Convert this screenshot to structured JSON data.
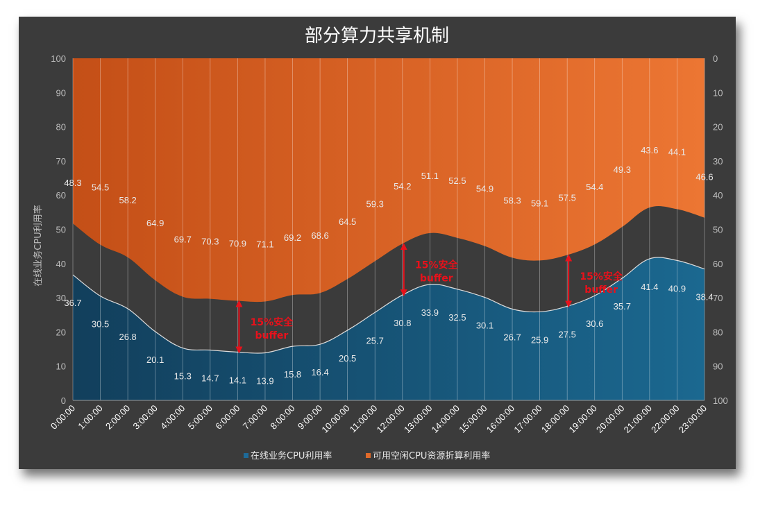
{
  "chart_data": {
    "type": "area",
    "title": "部分算力共享机制",
    "ylabel": "在线业务CPU利用率",
    "ylim": [
      0,
      100
    ],
    "yticks": [
      "0",
      "10",
      "20",
      "30",
      "40",
      "50",
      "60",
      "70",
      "80",
      "90",
      "100"
    ],
    "y2lim": [
      100,
      0
    ],
    "y2ticks": [
      "0",
      "10",
      "20",
      "30",
      "40",
      "50",
      "60",
      "70",
      "80",
      "90",
      "100"
    ],
    "categories": [
      "0:00:00",
      "1:00:00",
      "2:00:00",
      "3:00:00",
      "4:00:00",
      "5:00:00",
      "6:00:00",
      "7:00:00",
      "8:00:00",
      "9:00:00",
      "10:00:00",
      "11:00:00",
      "12:00:00",
      "13:00:00",
      "14:00:00",
      "15:00:00",
      "16:00:00",
      "17:00:00",
      "18:00:00",
      "19:00:00",
      "20:00:00",
      "21:00:00",
      "22:00:00",
      "23:00:00"
    ],
    "series": [
      {
        "name": "在线业务CPU利用率",
        "color": "#1e5e86",
        "axis": "left",
        "values": [
          36.7,
          30.5,
          26.8,
          20.1,
          15.3,
          14.7,
          14.1,
          13.9,
          15.8,
          16.4,
          20.5,
          25.7,
          30.8,
          33.9,
          32.5,
          30.1,
          26.7,
          25.9,
          27.5,
          30.6,
          35.7,
          41.4,
          40.9,
          38.4
        ]
      },
      {
        "name": "可用空闲CPU资源折算利用率",
        "color": "#e06a2a",
        "axis": "right-inverted",
        "values": [
          48.3,
          54.5,
          58.2,
          64.9,
          69.7,
          70.3,
          70.9,
          71.1,
          69.2,
          68.6,
          64.5,
          59.3,
          54.2,
          51.1,
          52.5,
          54.9,
          58.3,
          59.1,
          57.5,
          54.4,
          49.3,
          43.6,
          44.1,
          46.6
        ]
      }
    ],
    "annotations": [
      {
        "line1": "15%安全",
        "line2": "buffer",
        "at": "6:00:00"
      },
      {
        "line1": "15%安全",
        "line2": "buffer",
        "at": "12:00:00"
      },
      {
        "line1": "15%安全",
        "line2": "buffer",
        "at": "18:00:00"
      }
    ],
    "legend": "bottom",
    "grid": "vertical"
  }
}
